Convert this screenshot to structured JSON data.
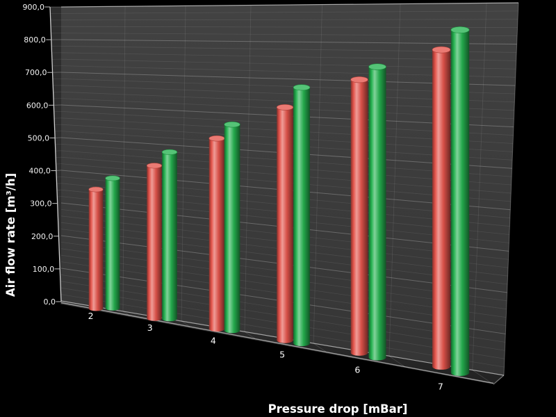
{
  "chart_data": {
    "type": "bar",
    "style": "3d-cylinder",
    "title": "",
    "xlabel": "Pressure drop [mBar]",
    "ylabel": "Air flow rate [m³/h]",
    "categories": [
      "2",
      "3",
      "4",
      "5",
      "6",
      "7"
    ],
    "series": [
      {
        "name": "red",
        "color": "#e4544b",
        "values": [
          355,
          440,
          530,
          625,
          705,
          785
        ]
      },
      {
        "name": "green",
        "color": "#25b250",
        "values": [
          390,
          480,
          570,
          680,
          740,
          835
        ]
      }
    ],
    "ylim": [
      0,
      900
    ],
    "y_major_step": 100,
    "y_minor_step": 20,
    "tick_labels": [
      "0,0",
      "100,0",
      "200,0",
      "300,0",
      "400,0",
      "500,0",
      "600,0",
      "700,0",
      "800,0",
      "900,0"
    ],
    "grid": true,
    "legend": false,
    "background": "#000000"
  }
}
